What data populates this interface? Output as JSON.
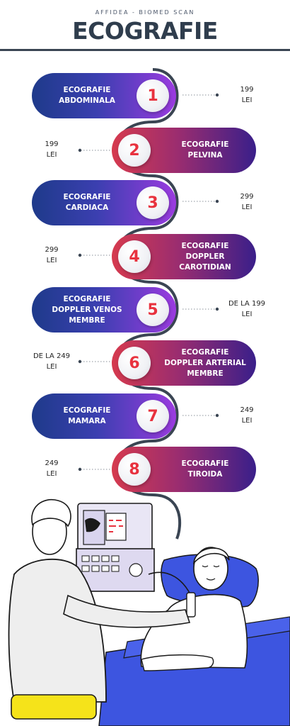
{
  "header": {
    "subtitle": "AFFIDEA  -  BIOMED SCAN",
    "title": "ECOGRAFIE"
  },
  "colors": {
    "title": "#2f3d4d",
    "number": "#e8323e",
    "left_gradient": [
      "#1e3a8a",
      "#9b3be0"
    ],
    "right_gradient": [
      "#d63a4e",
      "#3a1f8a"
    ],
    "bed": "#3d55e0",
    "pants": "#f5e31a"
  },
  "items": [
    {
      "number": "1",
      "label": "ECOGRAFIE\nABDOMINALA",
      "price": "199\nLEI"
    },
    {
      "number": "2",
      "label": "ECOGRAFIE\nPELVINA",
      "price": "199\nLEI"
    },
    {
      "number": "3",
      "label": "ECOGRAFIE\nCARDIACA",
      "price": "299\nLEI"
    },
    {
      "number": "4",
      "label": "ECOGRAFIE\nDOPPLER\nCAROTIDIAN",
      "price": "299\nLEI"
    },
    {
      "number": "5",
      "label": "ECOGRAFIE\nDOPPLER VENOS\nMEMBRE",
      "price": "DE LA 199\nLEI"
    },
    {
      "number": "6",
      "label": "ECOGRAFIE\nDOPPLER ARTERIAL\nMEMBRE",
      "price": "DE LA 249\nLEI"
    },
    {
      "number": "7",
      "label": "ECOGRAFIE\nMAMARA",
      "price": "249\nLEI"
    },
    {
      "number": "8",
      "label": "ECOGRAFIE\nTIROIDA",
      "price": "249\nLEI"
    }
  ]
}
